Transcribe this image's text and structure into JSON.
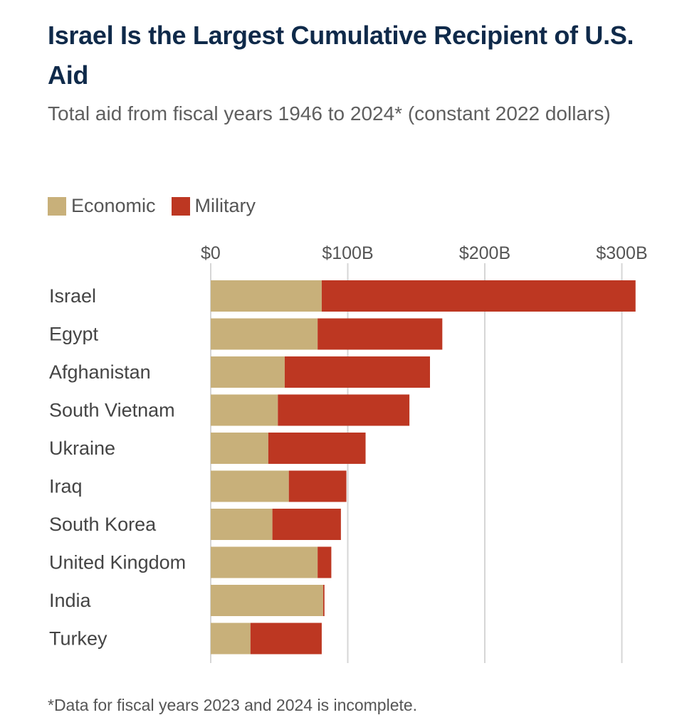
{
  "chart_data": {
    "type": "bar",
    "orientation": "horizontal",
    "stacked": true,
    "title": "Israel Is the Largest Cumulative Recipient of U.S. Aid",
    "subtitle": "Total aid from fiscal years 1946 to 2024* (constant 2022 dollars)",
    "footnote": "*Data for fiscal years 2023 and 2024 is incomplete.",
    "categories": [
      "Israel",
      "Egypt",
      "Afghanistan",
      "South Vietnam",
      "Ukraine",
      "Iraq",
      "South Korea",
      "United Kingdom",
      "India",
      "Turkey"
    ],
    "series": [
      {
        "name": "Economic",
        "color": "#c8b07a",
        "values": [
          81,
          78,
          54,
          49,
          42,
          57,
          45,
          78,
          82,
          29
        ]
      },
      {
        "name": "Military",
        "color": "#bd3722",
        "values": [
          229,
          91,
          106,
          96,
          71,
          42,
          50,
          10,
          1,
          52
        ]
      }
    ],
    "xlim": [
      0,
      310
    ],
    "xticks": [
      {
        "value": 0,
        "label": "$0"
      },
      {
        "value": 100,
        "label": "$100B"
      },
      {
        "value": 200,
        "label": "$200B"
      },
      {
        "value": 300,
        "label": "$300B"
      }
    ],
    "grid": true,
    "legend_position": "top-left"
  }
}
